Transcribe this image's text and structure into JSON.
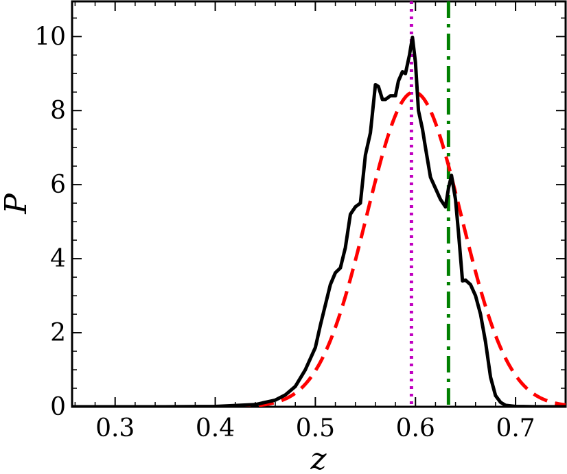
{
  "chart_data": {
    "type": "line",
    "title": "",
    "xlabel": "z",
    "ylabel": "P",
    "xlim": [
      0.257,
      0.75
    ],
    "ylim": [
      0,
      10.95
    ],
    "x_ticks": [
      0.3,
      0.4,
      0.5,
      0.6,
      0.7
    ],
    "x_tick_labels": [
      "0.3",
      "0.4",
      "0.5",
      "0.6",
      "0.7"
    ],
    "y_ticks": [
      0,
      2,
      4,
      6,
      8,
      10
    ],
    "y_tick_labels": [
      "0",
      "2",
      "4",
      "6",
      "8",
      "10"
    ],
    "grid": false,
    "series": [
      {
        "kind": "empirical-distribution",
        "color": "#000000",
        "style": "solid",
        "x": [
          0.257,
          0.3,
          0.35,
          0.4,
          0.44,
          0.46,
          0.47,
          0.48,
          0.49,
          0.5,
          0.505,
          0.51,
          0.515,
          0.52,
          0.525,
          0.53,
          0.535,
          0.54,
          0.545,
          0.55,
          0.555,
          0.56,
          0.563,
          0.567,
          0.57,
          0.575,
          0.58,
          0.583,
          0.587,
          0.59,
          0.594,
          0.597,
          0.6,
          0.603,
          0.607,
          0.61,
          0.615,
          0.62,
          0.625,
          0.63,
          0.633,
          0.636,
          0.64,
          0.643,
          0.647,
          0.65,
          0.655,
          0.66,
          0.665,
          0.67,
          0.675,
          0.68,
          0.685,
          0.69,
          0.7,
          0.72,
          0.75
        ],
        "y": [
          0.0,
          0.0,
          0.0,
          0.01,
          0.06,
          0.18,
          0.32,
          0.55,
          1.0,
          1.6,
          2.2,
          2.75,
          3.3,
          3.62,
          3.75,
          4.3,
          5.2,
          5.4,
          5.5,
          6.8,
          7.4,
          8.7,
          8.65,
          8.3,
          8.3,
          8.4,
          8.4,
          8.8,
          9.05,
          9.0,
          9.5,
          9.98,
          9.3,
          8.0,
          7.5,
          7.0,
          6.2,
          5.9,
          5.6,
          5.4,
          5.9,
          6.25,
          5.6,
          4.7,
          3.4,
          3.42,
          3.3,
          3.0,
          2.5,
          1.75,
          0.8,
          0.3,
          0.12,
          0.04,
          0.01,
          0.0,
          0.0
        ]
      },
      {
        "kind": "gaussian-fit",
        "color": "#ff0000",
        "style": "dashed",
        "mu": 0.5985,
        "sigma": 0.0473,
        "peak": 8.5
      }
    ],
    "vlines": [
      {
        "x": 0.596,
        "color": "#c000c0",
        "style": "dotted"
      },
      {
        "x": 0.633,
        "color": "#008000",
        "style": "dashdot"
      }
    ]
  }
}
